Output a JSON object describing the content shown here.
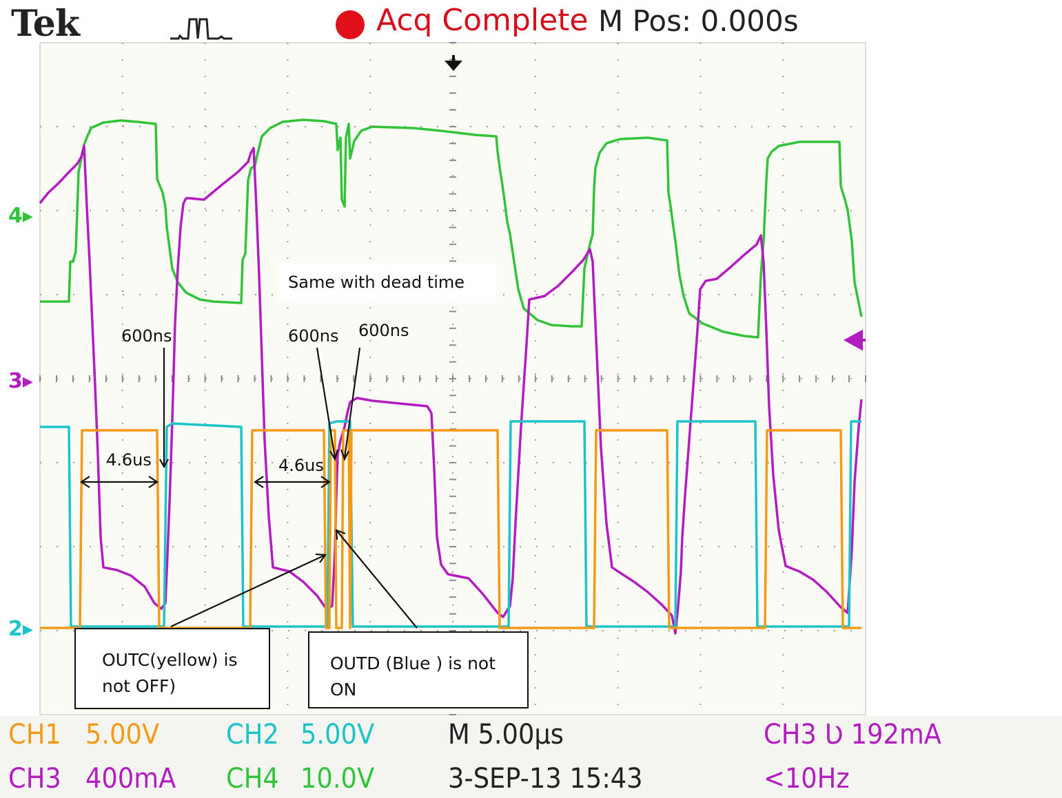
{
  "header": {
    "brand": "Tek",
    "status": "Acq Complete",
    "mpos": "M Pos: 0.000s"
  },
  "channel_markers": {
    "ch4": "4",
    "ch3": "3",
    "ch2": "2"
  },
  "footer": {
    "ch1_label": "CH1",
    "ch1_scale": "5.00V",
    "ch2_label": "CH2",
    "ch2_scale": "5.00V",
    "ch3_label": "CH3",
    "ch3_scale": "400mA",
    "ch4_label": "CH4",
    "ch4_scale": "10.0V",
    "timebase": "M 5.00µs",
    "datetime": "3-SEP-13 15:43",
    "trigger": "CH3 Ʋ 192mA",
    "freq": "<10Hz"
  },
  "annotations": {
    "dead_time_note": "Same with dead time",
    "dt1": "600ns",
    "dt2": "600ns",
    "dt3": "600ns",
    "pw1": "4.6us",
    "pw2": "4.6us",
    "box1": "OUTC(yellow) is\nnot OFF)",
    "box2": "OUTD (Blue ) is not\nON"
  },
  "colors": {
    "ch1": "#f59a14",
    "ch2": "#1cc3c9",
    "ch3": "#b21cc0",
    "ch4": "#33c33a",
    "grid": "#9a9a9a",
    "screen": "#fbfbf6"
  }
}
